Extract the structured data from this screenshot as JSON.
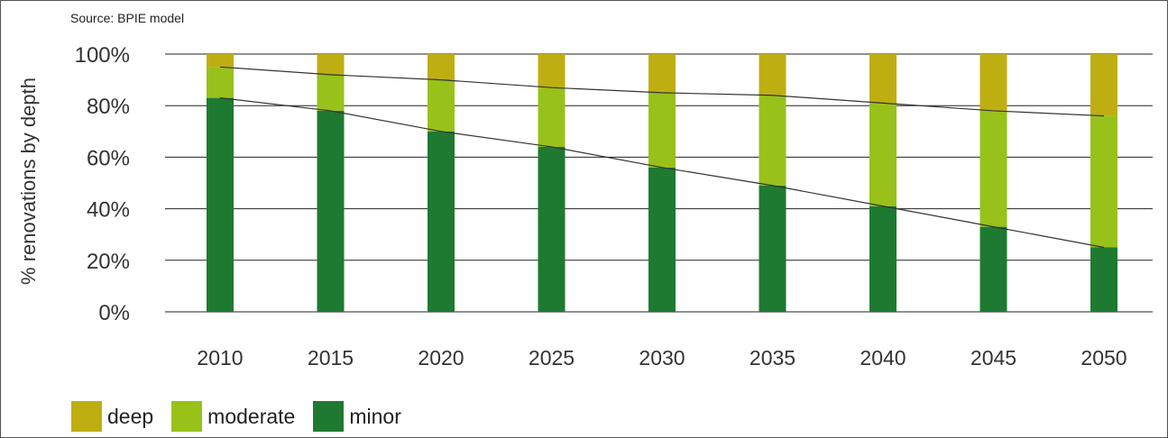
{
  "source_note": "Source: BPIE model",
  "chart_data": {
    "type": "bar",
    "stacked": true,
    "categories": [
      "2010",
      "2015",
      "2020",
      "2025",
      "2030",
      "2035",
      "2040",
      "2045",
      "2050"
    ],
    "series": [
      {
        "name": "minor",
        "color": "#1e7a30",
        "values": [
          83,
          78,
          70,
          64,
          56,
          49,
          41,
          33,
          25
        ]
      },
      {
        "name": "moderate",
        "color": "#98c11a",
        "values": [
          12,
          14,
          20,
          23,
          29,
          35,
          40,
          45,
          51
        ]
      },
      {
        "name": "deep",
        "color": "#bfae12",
        "values": [
          5,
          8,
          10,
          13,
          15,
          16,
          19,
          22,
          24
        ]
      }
    ],
    "trend_lines": [
      "top of minor",
      "top of moderate"
    ],
    "ylabel": "% renovations by depth",
    "yticks": [
      "0%",
      "20%",
      "40%",
      "60%",
      "80%",
      "100%"
    ],
    "ylim": [
      0,
      100
    ],
    "grid": true,
    "legend": [
      {
        "label": "deep",
        "color": "#bfae12"
      },
      {
        "label": "moderate",
        "color": "#98c11a"
      },
      {
        "label": "minor",
        "color": "#1e7a30"
      }
    ],
    "legend_position": "bottom-left"
  }
}
